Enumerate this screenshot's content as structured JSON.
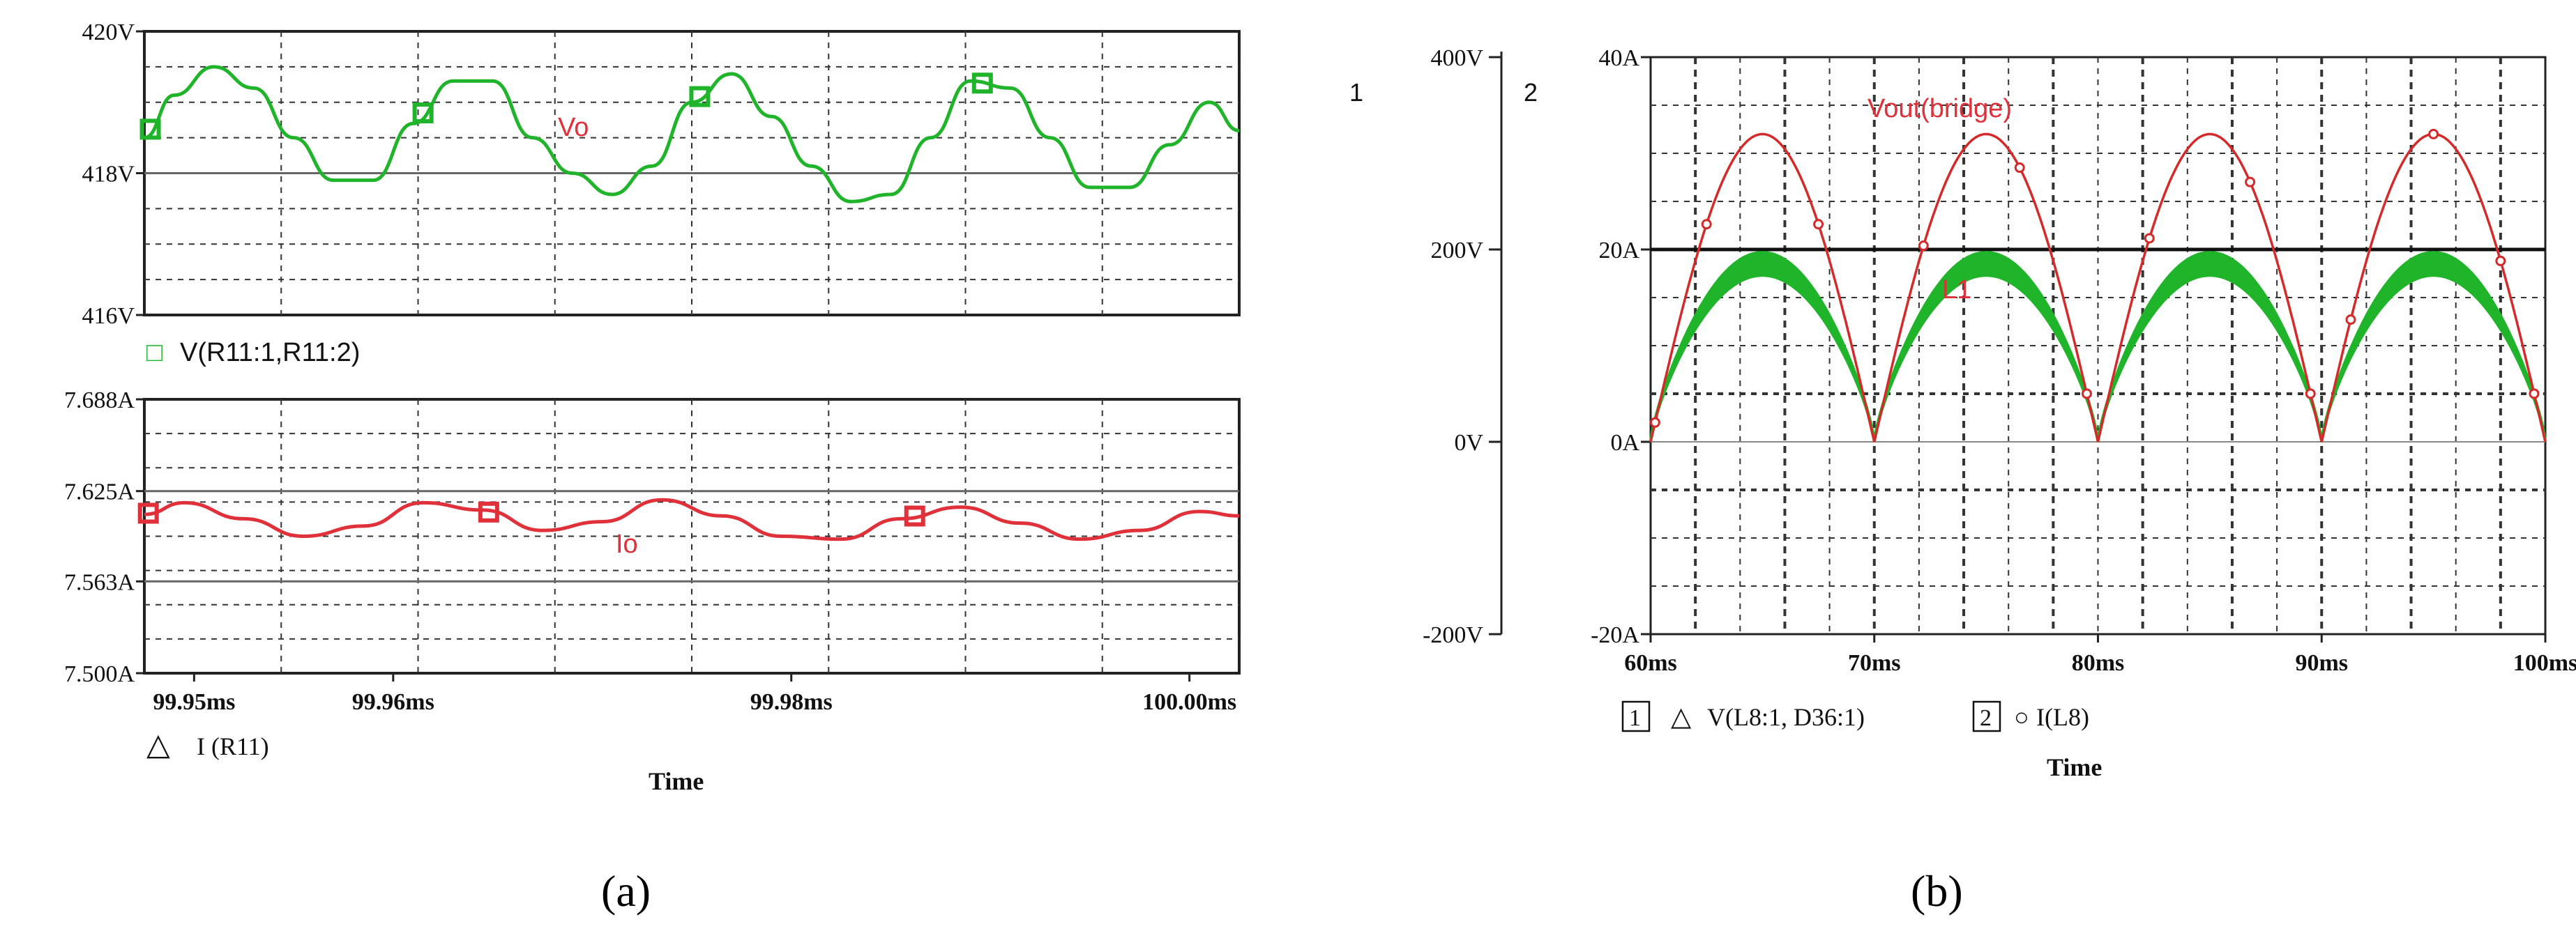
{
  "captions": {
    "a": "(a)",
    "b": "(b)"
  },
  "chart_data": [
    {
      "id": "a-top",
      "type": "line",
      "xlabel": "",
      "ylabel": "",
      "xlim": [
        99.9475,
        100.0025
      ],
      "ylim": [
        416,
        420
      ],
      "yticks": [
        {
          "value": 420,
          "label": "420V"
        },
        {
          "value": 418,
          "label": "418V"
        },
        {
          "value": 416,
          "label": "416V"
        }
      ],
      "xticks": [],
      "legend": "V(R11:1,R11:2)",
      "legend_symbol": "□",
      "annotation": "Vo",
      "grid": true,
      "series": [
        {
          "name": "V(R11:1,R11:2)",
          "color": "#1fb42a",
          "x": [
            99.9475,
            99.949,
            99.951,
            99.953,
            99.955,
            99.957,
            99.959,
            99.961,
            99.963,
            99.965,
            99.967,
            99.969,
            99.971,
            99.973,
            99.975,
            99.977,
            99.979,
            99.981,
            99.983,
            99.985,
            99.987,
            99.989,
            99.991,
            99.993,
            99.995,
            99.997,
            99.999,
            100.001,
            100.0025
          ],
          "values": [
            418.5,
            419.1,
            419.5,
            419.2,
            418.5,
            417.9,
            417.9,
            418.7,
            419.3,
            419.3,
            418.5,
            418.0,
            417.7,
            418.1,
            419.0,
            419.4,
            418.8,
            418.1,
            417.6,
            417.7,
            418.5,
            419.3,
            419.2,
            418.5,
            417.8,
            417.8,
            418.4,
            419.0,
            418.6
          ]
        }
      ],
      "markers_x": [
        99.9478,
        99.9615,
        99.9754,
        99.9896
      ]
    },
    {
      "id": "a-bottom",
      "type": "line",
      "xlabel": "Time",
      "ylabel": "",
      "xlim": [
        99.9475,
        100.0025
      ],
      "ylim": [
        7.5,
        7.688
      ],
      "yticks": [
        {
          "value": 7.688,
          "label": "7.688A"
        },
        {
          "value": 7.625,
          "label": "7.625A"
        },
        {
          "value": 7.563,
          "label": "7.563A"
        },
        {
          "value": 7.5,
          "label": "7.500A"
        }
      ],
      "xticks": [
        {
          "value": 99.95,
          "label": "99.95ms"
        },
        {
          "value": 99.96,
          "label": "99.96ms"
        },
        {
          "value": 99.98,
          "label": "99.98ms"
        },
        {
          "value": 100.0,
          "label": "100.00ms"
        }
      ],
      "legend": "I (R11)",
      "legend_symbol": "△",
      "annotation": "Io",
      "grid": true,
      "series": [
        {
          "name": "I (R11)",
          "color": "#e0303a",
          "x": [
            99.9475,
            99.9495,
            99.9525,
            99.9555,
            99.9585,
            99.9615,
            99.9645,
            99.9675,
            99.9705,
            99.9735,
            99.9765,
            99.9795,
            99.9825,
            99.9855,
            99.9885,
            99.9915,
            99.9945,
            99.9975,
            100.0005,
            100.0025
          ],
          "values": [
            7.609,
            7.617,
            7.606,
            7.594,
            7.601,
            7.617,
            7.612,
            7.598,
            7.604,
            7.619,
            7.608,
            7.594,
            7.592,
            7.606,
            7.614,
            7.603,
            7.592,
            7.598,
            7.611,
            7.608
          ]
        }
      ],
      "markers_x": [
        99.9477,
        99.9648,
        99.9862
      ]
    },
    {
      "id": "b",
      "type": "line",
      "xlabel": "Time",
      "xlim": [
        60,
        100
      ],
      "xticks": [
        {
          "value": 60,
          "label": "60ms"
        },
        {
          "value": 70,
          "label": "70ms"
        },
        {
          "value": 80,
          "label": "80ms"
        },
        {
          "value": 90,
          "label": "90ms"
        },
        {
          "value": 100,
          "label": "100ms"
        }
      ],
      "axis1": {
        "id_label": "1",
        "ylim": [
          -200,
          400
        ],
        "yticks": [
          {
            "value": 400,
            "label": "400V"
          },
          {
            "value": 200,
            "label": "200V"
          },
          {
            "value": 0,
            "label": "0V"
          },
          {
            "value": -200,
            "label": "-200V"
          }
        ]
      },
      "axis2": {
        "id_label": "2",
        "ylim": [
          -20,
          40
        ],
        "yticks": [
          {
            "value": 40,
            "label": "40A"
          },
          {
            "value": 20,
            "label": "20A"
          },
          {
            "value": 0,
            "label": "0A"
          },
          {
            "value": -20,
            "label": "-20A"
          }
        ]
      },
      "grid": true,
      "legend": [
        {
          "box": "1",
          "symbol": "△",
          "text": "V(L8:1, D36:1)"
        },
        {
          "box": "2",
          "symbol": "○",
          "text": "I(L8)"
        }
      ],
      "series": [
        {
          "name": "Vout(bridge)",
          "axis": 1,
          "color": "#d42a2a",
          "shape": "rectified-sine",
          "period_ms": 10,
          "zeros_ms": [
            60,
            70,
            80,
            90,
            100
          ],
          "peak": 320
        },
        {
          "name": "L1",
          "axis": 2,
          "color": "#1fb42a",
          "shape": "rectified-current",
          "period_ms": 10,
          "zeros_ms": [
            60,
            70,
            80,
            90,
            100
          ],
          "peak": 18.5,
          "ripple": 1.2
        }
      ],
      "annotations": [
        "Vout(bridge)",
        "L1"
      ]
    }
  ]
}
